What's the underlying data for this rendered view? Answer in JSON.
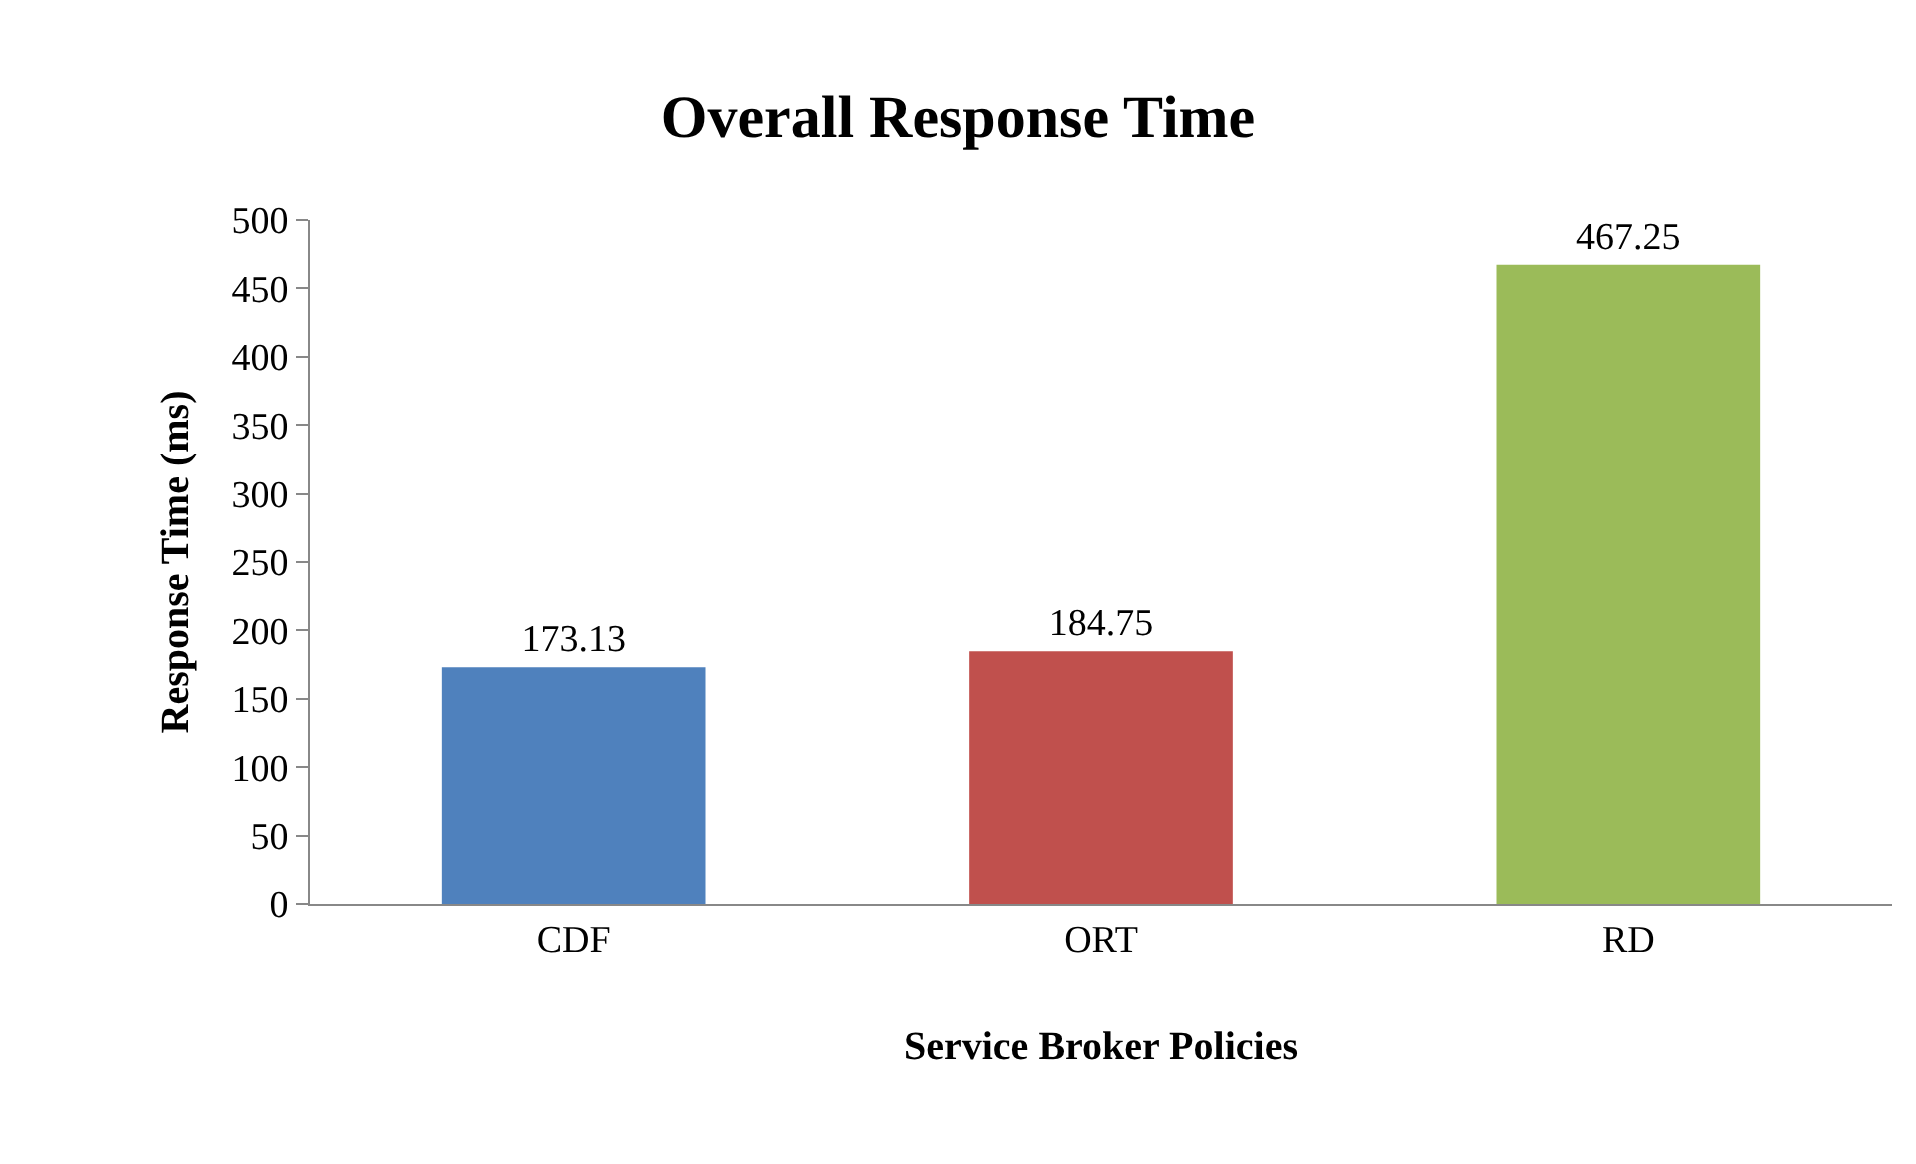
{
  "chart_data": {
    "type": "bar",
    "title": "Overall Response Time",
    "xlabel": "Service Broker Policies",
    "ylabel": "Response Time (ms)",
    "categories": [
      "CDF",
      "ORT",
      "RD"
    ],
    "values": [
      173.13,
      184.75,
      467.25
    ],
    "colors": [
      "#4f81bd",
      "#c0504d",
      "#9bbb59"
    ],
    "ylim": [
      0,
      500
    ],
    "yticks": [
      0,
      50,
      100,
      150,
      200,
      250,
      300,
      350,
      400,
      450,
      500
    ],
    "data_labels": true
  }
}
